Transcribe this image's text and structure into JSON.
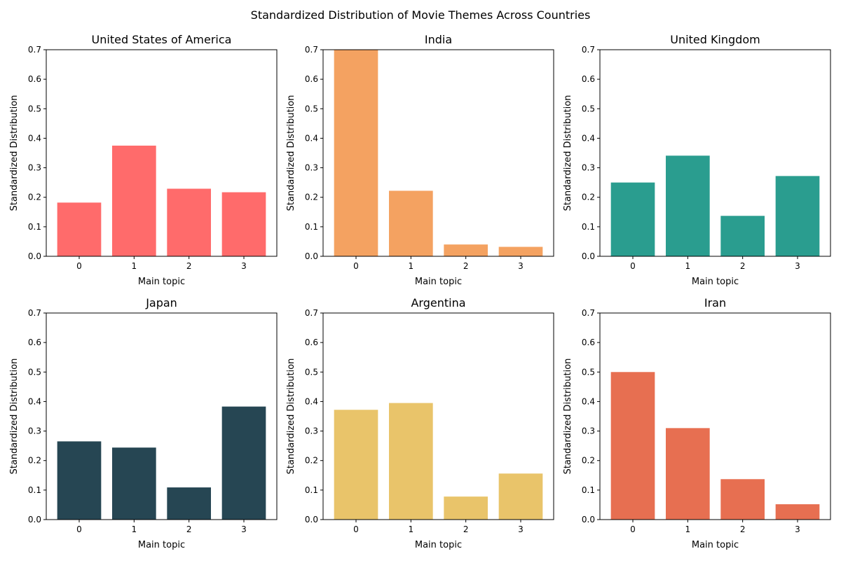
{
  "figure": {
    "title": "Standardized Distribution of Movie Themes Across Countries"
  },
  "chart_data": [
    {
      "type": "bar",
      "title": "United States of America",
      "categories": [
        "0",
        "1",
        "2",
        "3"
      ],
      "values": [
        0.182,
        0.375,
        0.229,
        0.217
      ],
      "xlabel": "Main topic",
      "ylabel": "Standardized Distribution",
      "ylim": [
        0,
        0.7
      ],
      "yticks": [
        "0.0",
        "0.1",
        "0.2",
        "0.3",
        "0.4",
        "0.5",
        "0.6",
        "0.7"
      ],
      "color": "#ff6b6b",
      "grid": false
    },
    {
      "type": "bar",
      "title": "India",
      "categories": [
        "0",
        "1",
        "2",
        "3"
      ],
      "values": [
        0.72,
        0.222,
        0.04,
        0.032
      ],
      "xlabel": "Main topic",
      "ylabel": "Standardized Distribution",
      "ylim": [
        0,
        0.7
      ],
      "yticks": [
        "0.0",
        "0.1",
        "0.2",
        "0.3",
        "0.4",
        "0.5",
        "0.6",
        "0.7"
      ],
      "color": "#f4a261",
      "grid": false
    },
    {
      "type": "bar",
      "title": "United Kingdom",
      "categories": [
        "0",
        "1",
        "2",
        "3"
      ],
      "values": [
        0.25,
        0.341,
        0.137,
        0.272
      ],
      "xlabel": "Main topic",
      "ylabel": "Standardized Distribution",
      "ylim": [
        0,
        0.7
      ],
      "yticks": [
        "0.0",
        "0.1",
        "0.2",
        "0.3",
        "0.4",
        "0.5",
        "0.6",
        "0.7"
      ],
      "color": "#2a9d8f",
      "grid": false
    },
    {
      "type": "bar",
      "title": "Japan",
      "categories": [
        "0",
        "1",
        "2",
        "3"
      ],
      "values": [
        0.265,
        0.244,
        0.109,
        0.383
      ],
      "xlabel": "Main topic",
      "ylabel": "Standardized Distribution",
      "ylim": [
        0,
        0.7
      ],
      "yticks": [
        "0.0",
        "0.1",
        "0.2",
        "0.3",
        "0.4",
        "0.5",
        "0.6",
        "0.7"
      ],
      "color": "#264653",
      "grid": false
    },
    {
      "type": "bar",
      "title": "Argentina",
      "categories": [
        "0",
        "1",
        "2",
        "3"
      ],
      "values": [
        0.372,
        0.395,
        0.078,
        0.156
      ],
      "xlabel": "Main topic",
      "ylabel": "Standardized Distribution",
      "ylim": [
        0,
        0.7
      ],
      "yticks": [
        "0.0",
        "0.1",
        "0.2",
        "0.3",
        "0.4",
        "0.5",
        "0.6",
        "0.7"
      ],
      "color": "#e9c46a",
      "grid": false
    },
    {
      "type": "bar",
      "title": "Iran",
      "categories": [
        "0",
        "1",
        "2",
        "3"
      ],
      "values": [
        0.5,
        0.31,
        0.137,
        0.052
      ],
      "xlabel": "Main topic",
      "ylabel": "Standardized Distribution",
      "ylim": [
        0,
        0.7
      ],
      "yticks": [
        "0.0",
        "0.1",
        "0.2",
        "0.3",
        "0.4",
        "0.5",
        "0.6",
        "0.7"
      ],
      "color": "#e76f51",
      "grid": false
    }
  ]
}
